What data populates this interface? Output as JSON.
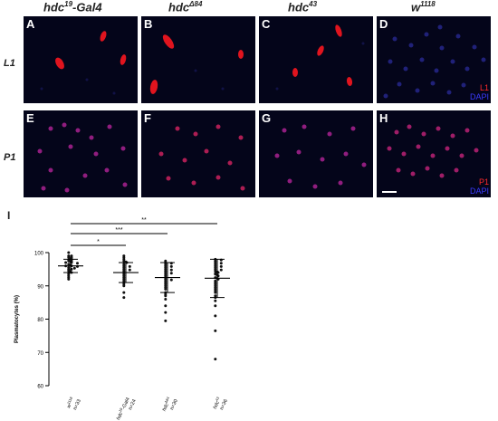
{
  "headers": [
    {
      "base": "hdc",
      "sup": "19",
      "suffix": "-Gal4"
    },
    {
      "base": "hdc",
      "sup": "Δ84",
      "suffix": ""
    },
    {
      "base": "hdc",
      "sup": "43",
      "suffix": ""
    },
    {
      "base": "w",
      "sup": "1118",
      "suffix": ""
    }
  ],
  "rows": [
    {
      "label": "L1",
      "legend_red": "L1",
      "legend_blue": "DAPI",
      "panels": [
        "A",
        "B",
        "C",
        "D"
      ]
    },
    {
      "label": "P1",
      "legend_red": "P1",
      "legend_blue": "DAPI",
      "panels": [
        "E",
        "F",
        "G",
        "H"
      ]
    }
  ],
  "colors": {
    "panel_bg": "#04051a",
    "red_stain": "#ff1a1a",
    "blue_stain": "#3030d0"
  },
  "chart_data": {
    "type": "scatter",
    "panel_letter": "I",
    "ylabel": "Plasmatocytes (%)",
    "ylim": [
      60,
      100
    ],
    "yticks": [
      60,
      70,
      80,
      90,
      100
    ],
    "categories": [
      {
        "name": "w",
        "sup": "1118",
        "n": "n=33"
      },
      {
        "name": "hdc",
        "sup": "19",
        "suffix": "-Gal4",
        "n": "n=24"
      },
      {
        "name": "hdc",
        "sup": "Δ84",
        "n": "n=30"
      },
      {
        "name": "hdc",
        "sup": "43",
        "n": "n=36"
      }
    ],
    "series": [
      {
        "mean": 96.0,
        "sd": [
          94.0,
          98.0
        ],
        "values": [
          100,
          99,
          99,
          98.8,
          98.5,
          98.5,
          98.2,
          98,
          97.8,
          97.5,
          97.5,
          97.2,
          97,
          97,
          96.8,
          96.5,
          96.2,
          96,
          96,
          95.8,
          95.5,
          95.3,
          95,
          95,
          94.8,
          94.5,
          94.2,
          94,
          93.8,
          93.5,
          93,
          92.5,
          92
        ]
      },
      {
        "mean": 94.0,
        "sd": [
          91.0,
          97.0
        ],
        "values": [
          99,
          98.5,
          98,
          97.5,
          97.2,
          97,
          96.5,
          96,
          95.8,
          95.5,
          95,
          94.8,
          94.5,
          94,
          93.5,
          93,
          92.5,
          92,
          91.5,
          91,
          90.5,
          90,
          88,
          86.5
        ]
      },
      {
        "mean": 92.5,
        "sd": [
          88.0,
          97.0
        ],
        "values": [
          97.5,
          97,
          96.8,
          96.5,
          96,
          95.8,
          95.5,
          95,
          94.8,
          94.5,
          94,
          93.8,
          93.5,
          93,
          92.5,
          92,
          91.8,
          91.5,
          91,
          90.5,
          90,
          89.5,
          89,
          88,
          87.5,
          87,
          86,
          84,
          82,
          79.5
        ]
      },
      {
        "mean": 92.3,
        "sd": [
          86.5,
          98.0
        ],
        "values": [
          98,
          97.8,
          97.5,
          97,
          96.8,
          96.5,
          96,
          95.8,
          95.5,
          95,
          94.8,
          94.5,
          94.2,
          94,
          93.8,
          93.5,
          93.2,
          93,
          92.5,
          92.2,
          92,
          91.5,
          91,
          90.5,
          90,
          89.5,
          89,
          88.5,
          88,
          87,
          86.5,
          85.5,
          84,
          81,
          76.5,
          68
        ]
      }
    ],
    "significance": [
      {
        "from": 0,
        "to": 3,
        "label": "**"
      },
      {
        "from": 0,
        "to": 2,
        "label": "***"
      },
      {
        "from": 0,
        "to": 1,
        "label": "*"
      }
    ]
  }
}
